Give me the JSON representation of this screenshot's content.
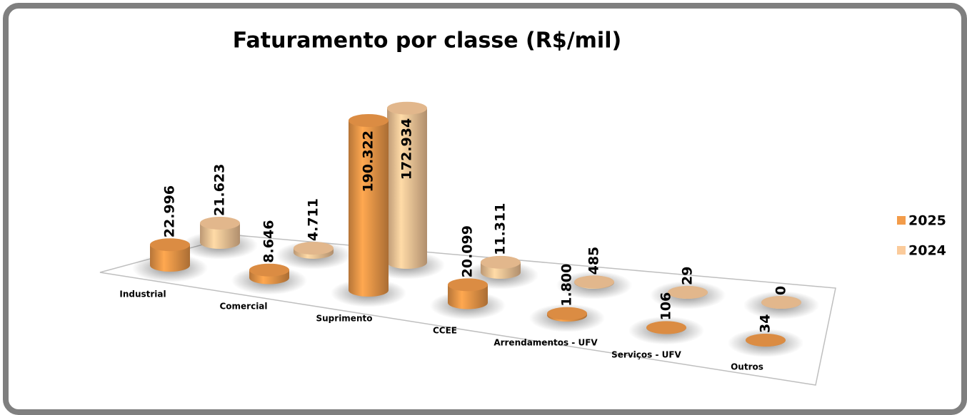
{
  "chart_data": {
    "type": "bar3d",
    "title": "Faturamento por classe (R$/mil)",
    "categories": [
      "Industrial",
      "Comercial",
      "Suprimento",
      "CCEE",
      "Arrendamentos - UFV",
      "Serviços - UFV",
      "Outros"
    ],
    "series": [
      {
        "name": "2025",
        "color": "#f39c4a",
        "values": [
          22996,
          8646,
          190322,
          20099,
          1800,
          106,
          34
        ],
        "value_labels": [
          "22.996",
          "8.646",
          "190.322",
          "20.099",
          "1.800",
          "106",
          "34"
        ]
      },
      {
        "name": "2024",
        "color": "#fbcb9b",
        "values": [
          21623,
          4711,
          172934,
          11311,
          485,
          29,
          0
        ],
        "value_labels": [
          "21.623",
          "4.711",
          "172.934",
          "11.311",
          "485",
          "29",
          "0"
        ]
      }
    ],
    "legend": "right"
  }
}
